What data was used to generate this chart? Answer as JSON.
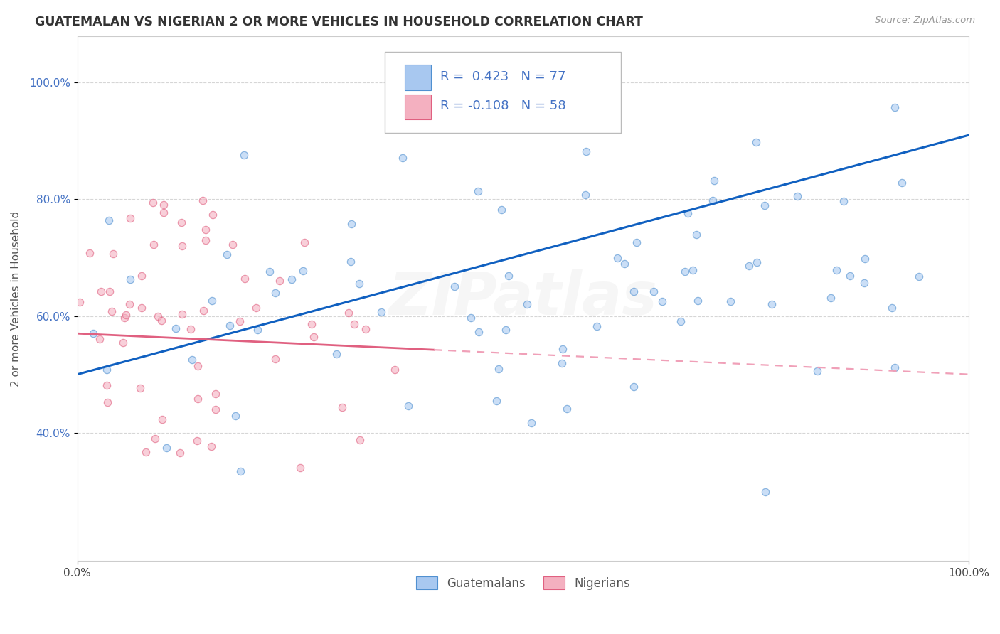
{
  "title": "GUATEMALAN VS NIGERIAN 2 OR MORE VEHICLES IN HOUSEHOLD CORRELATION CHART",
  "source": "Source: ZipAtlas.com",
  "ylabel": "2 or more Vehicles in Household",
  "xlim": [
    0.0,
    100.0
  ],
  "ylim": [
    18.0,
    108.0
  ],
  "yticks": [
    40.0,
    60.0,
    80.0,
    100.0
  ],
  "ytick_labels": [
    "40.0%",
    "60.0%",
    "80.0%",
    "100.0%"
  ],
  "xticks": [
    0.0,
    100.0
  ],
  "xtick_labels": [
    "0.0%",
    "100.0%"
  ],
  "guatemalan_color": "#a8c8f0",
  "nigerian_color": "#f4b0c0",
  "guatemalan_edge": "#5090d0",
  "nigerian_edge": "#e06080",
  "trend_guatemalan_color": "#1060c0",
  "trend_nigerian_solid_color": "#e06080",
  "trend_nigerian_dash_color": "#f0a0b8",
  "legend_text_color": "#4472c4",
  "watermark": "ZIPatlas",
  "watermark_alpha": 0.1,
  "background_color": "#ffffff",
  "grid_color": "#cccccc",
  "scatter_size": 55,
  "scatter_alpha": 0.6,
  "guatemalan_n": 77,
  "nigerian_n": 58,
  "guatemalan_R": 0.423,
  "nigerian_R": -0.108,
  "trend_g_y0": 50.0,
  "trend_g_y1": 91.0,
  "trend_n_y0": 57.0,
  "trend_n_y1": 50.0,
  "nigerian_x_max_data": 40.0
}
